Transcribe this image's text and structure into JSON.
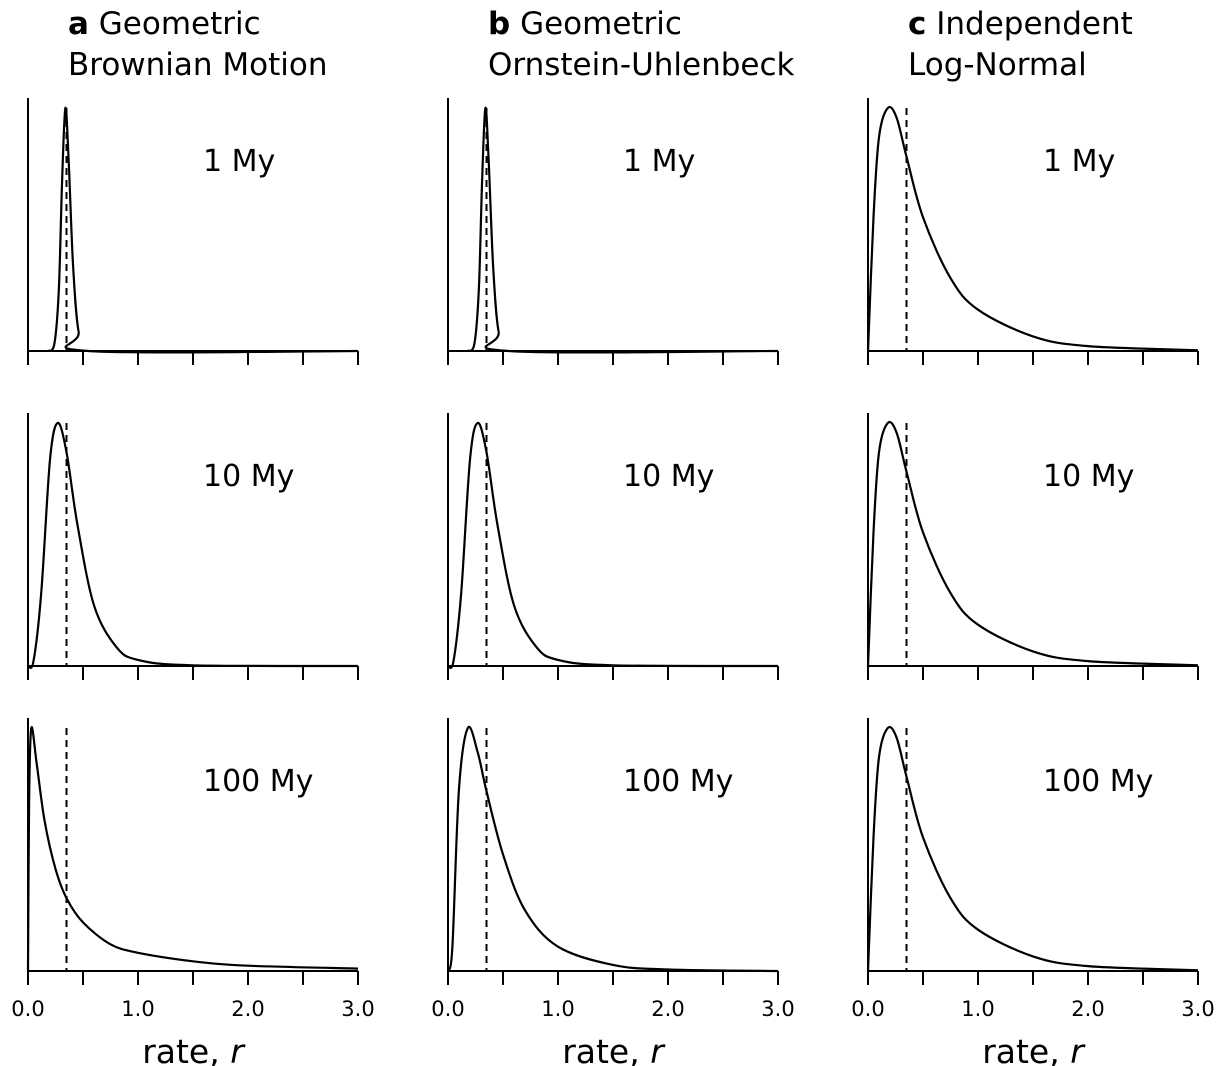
{
  "columns": [
    {
      "letter": "a",
      "title_line1": "Geometric",
      "title_line2": "Brownian Motion"
    },
    {
      "letter": "b",
      "title_line1": "Geometric",
      "title_line2": "Ornstein-Uhlenbeck"
    },
    {
      "letter": "c",
      "title_line1": "Independent",
      "title_line2": "Log-Normal"
    }
  ],
  "x_axis": {
    "label": "rate, ",
    "label_italic": "r",
    "range": [
      0,
      3
    ],
    "tick_labels": [
      "0.0",
      "1.0",
      "2.0",
      "3.0"
    ]
  },
  "chart_data": {
    "type": "line",
    "layout": "3 columns x 3 rows of density plots; dashed vertical reference line in each panel",
    "x_range": [
      0,
      3
    ],
    "reference_line_x": 0.35,
    "panels": [
      {
        "column": "a",
        "label": "1 My",
        "mode": 0.34,
        "ci_90": [
          0.23,
          0.48
        ],
        "points": [
          [
            0.18,
            0
          ],
          [
            0.24,
            0.03
          ],
          [
            0.28,
            0.25
          ],
          [
            0.31,
            0.7
          ],
          [
            0.34,
            1.0
          ],
          [
            0.37,
            0.78
          ],
          [
            0.41,
            0.35
          ],
          [
            0.46,
            0.08
          ],
          [
            0.55,
            0
          ],
          [
            3.0,
            0
          ]
        ]
      },
      {
        "column": "b",
        "label": "1 My",
        "mode": 0.34,
        "ci_90": [
          0.23,
          0.48
        ],
        "points": [
          [
            0.18,
            0
          ],
          [
            0.24,
            0.03
          ],
          [
            0.28,
            0.25
          ],
          [
            0.31,
            0.7
          ],
          [
            0.34,
            1.0
          ],
          [
            0.37,
            0.78
          ],
          [
            0.41,
            0.35
          ],
          [
            0.46,
            0.08
          ],
          [
            0.55,
            0
          ],
          [
            3.0,
            0
          ]
        ]
      },
      {
        "column": "c",
        "label": "1 My",
        "mode": 0.18,
        "ci_90": [
          0.03,
          1.55
        ],
        "points": [
          [
            0,
            0
          ],
          [
            0.05,
            0.55
          ],
          [
            0.1,
            0.88
          ],
          [
            0.18,
            1.0
          ],
          [
            0.26,
            0.96
          ],
          [
            0.35,
            0.8
          ],
          [
            0.5,
            0.55
          ],
          [
            0.75,
            0.3
          ],
          [
            1.0,
            0.17
          ],
          [
            1.5,
            0.06
          ],
          [
            2.0,
            0.02
          ],
          [
            3.0,
            0.003
          ]
        ]
      },
      {
        "column": "a",
        "label": "10 My",
        "mode": 0.27,
        "ci_90": [
          0.1,
          0.85
        ],
        "points": [
          [
            0,
            0
          ],
          [
            0.05,
            0.02
          ],
          [
            0.12,
            0.3
          ],
          [
            0.2,
            0.85
          ],
          [
            0.27,
            1.0
          ],
          [
            0.35,
            0.88
          ],
          [
            0.45,
            0.58
          ],
          [
            0.6,
            0.25
          ],
          [
            0.8,
            0.08
          ],
          [
            1.0,
            0.025
          ],
          [
            1.5,
            0.003
          ],
          [
            3.0,
            0
          ]
        ]
      },
      {
        "column": "b",
        "label": "10 My",
        "mode": 0.27,
        "ci_90": [
          0.1,
          0.85
        ],
        "points": [
          [
            0,
            0
          ],
          [
            0.05,
            0.02
          ],
          [
            0.12,
            0.3
          ],
          [
            0.2,
            0.85
          ],
          [
            0.27,
            1.0
          ],
          [
            0.35,
            0.88
          ],
          [
            0.45,
            0.58
          ],
          [
            0.6,
            0.25
          ],
          [
            0.8,
            0.08
          ],
          [
            1.0,
            0.025
          ],
          [
            1.5,
            0.003
          ],
          [
            3.0,
            0
          ]
        ]
      },
      {
        "column": "c",
        "label": "10 My",
        "mode": 0.18,
        "ci_90": [
          0.03,
          1.55
        ],
        "points": [
          [
            0,
            0
          ],
          [
            0.05,
            0.55
          ],
          [
            0.1,
            0.88
          ],
          [
            0.18,
            1.0
          ],
          [
            0.26,
            0.96
          ],
          [
            0.35,
            0.8
          ],
          [
            0.5,
            0.55
          ],
          [
            0.75,
            0.3
          ],
          [
            1.0,
            0.17
          ],
          [
            1.5,
            0.06
          ],
          [
            2.0,
            0.02
          ],
          [
            3.0,
            0.003
          ]
        ]
      },
      {
        "column": "a",
        "label": "100 My",
        "mode": 0.03,
        "ci_90": [
          0.01,
          2.2
        ],
        "points": [
          [
            0,
            0
          ],
          [
            0.01,
            0.7
          ],
          [
            0.03,
            1.0
          ],
          [
            0.08,
            0.85
          ],
          [
            0.15,
            0.62
          ],
          [
            0.25,
            0.42
          ],
          [
            0.35,
            0.3
          ],
          [
            0.5,
            0.2
          ],
          [
            0.75,
            0.11
          ],
          [
            1.0,
            0.075
          ],
          [
            1.5,
            0.04
          ],
          [
            2.0,
            0.022
          ],
          [
            3.0,
            0.01
          ]
        ]
      },
      {
        "column": "b",
        "label": "100 My",
        "mode": 0.18,
        "ci_90": [
          0.04,
          1.3
        ],
        "points": [
          [
            0,
            0
          ],
          [
            0.04,
            0.1
          ],
          [
            0.1,
            0.75
          ],
          [
            0.18,
            1.0
          ],
          [
            0.27,
            0.9
          ],
          [
            0.35,
            0.74
          ],
          [
            0.5,
            0.48
          ],
          [
            0.7,
            0.25
          ],
          [
            1.0,
            0.1
          ],
          [
            1.5,
            0.025
          ],
          [
            2.0,
            0.006
          ],
          [
            3.0,
            0
          ]
        ]
      },
      {
        "column": "c",
        "label": "100 My",
        "mode": 0.18,
        "ci_90": [
          0.03,
          1.55
        ],
        "points": [
          [
            0,
            0
          ],
          [
            0.05,
            0.55
          ],
          [
            0.1,
            0.88
          ],
          [
            0.18,
            1.0
          ],
          [
            0.26,
            0.96
          ],
          [
            0.35,
            0.8
          ],
          [
            0.5,
            0.55
          ],
          [
            0.75,
            0.3
          ],
          [
            1.0,
            0.17
          ],
          [
            1.5,
            0.06
          ],
          [
            2.0,
            0.02
          ],
          [
            3.0,
            0.003
          ]
        ]
      }
    ]
  }
}
